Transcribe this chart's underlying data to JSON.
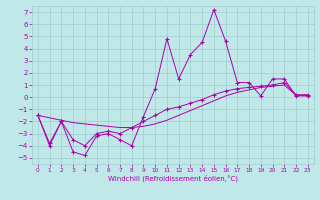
{
  "xlabel": "Windchill (Refroidissement éolien,°C)",
  "background_color": "#c0e8e8",
  "grid_color": "#a0cccc",
  "line_color": "#aa00aa",
  "x_hours": [
    0,
    1,
    2,
    3,
    4,
    5,
    6,
    7,
    8,
    9,
    10,
    11,
    12,
    13,
    14,
    15,
    16,
    17,
    18,
    19,
    20,
    21,
    22,
    23
  ],
  "jagged_line": [
    -1.5,
    -4.0,
    -2.0,
    -4.5,
    -4.8,
    -3.2,
    -3.0,
    -3.5,
    -4.0,
    -1.6,
    0.7,
    4.8,
    1.5,
    3.5,
    4.5,
    7.2,
    4.6,
    1.2,
    1.2,
    0.1,
    1.5,
    1.5,
    0.1,
    0.1
  ],
  "mid_line": [
    -1.5,
    -3.8,
    -2.0,
    -3.5,
    -4.0,
    -3.0,
    -2.8,
    -3.0,
    -2.5,
    -2.0,
    -1.5,
    -1.0,
    -0.8,
    -0.5,
    -0.2,
    0.2,
    0.5,
    0.7,
    0.8,
    0.9,
    1.0,
    1.2,
    0.2,
    0.2
  ],
  "smooth_line": [
    -1.5,
    -1.7,
    -1.9,
    -2.1,
    -2.2,
    -2.3,
    -2.4,
    -2.5,
    -2.5,
    -2.4,
    -2.2,
    -1.9,
    -1.5,
    -1.1,
    -0.7,
    -0.3,
    0.1,
    0.4,
    0.6,
    0.8,
    0.9,
    1.0,
    0.15,
    0.15
  ],
  "ylim": [
    -5.5,
    7.5
  ],
  "xlim": [
    -0.5,
    23.5
  ],
  "yticks": [
    -5,
    -4,
    -3,
    -2,
    -1,
    0,
    1,
    2,
    3,
    4,
    5,
    6,
    7
  ],
  "xticks": [
    0,
    1,
    2,
    3,
    4,
    5,
    6,
    7,
    8,
    9,
    10,
    11,
    12,
    13,
    14,
    15,
    16,
    17,
    18,
    19,
    20,
    21,
    22,
    23
  ]
}
